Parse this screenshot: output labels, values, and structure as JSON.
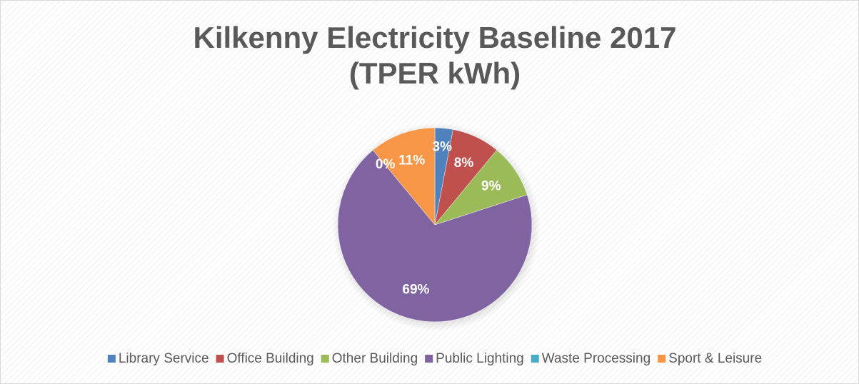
{
  "chart_data": {
    "type": "pie",
    "title": [
      "Kilkenny Electricity Baseline 2017",
      "(TPER kWh)"
    ],
    "categories": [
      "Library Service",
      "Office Building",
      "Other Building",
      "Public Lighting",
      "Waste Processing",
      "Sport & Leisure"
    ],
    "values": [
      3,
      8,
      9,
      69,
      0,
      11
    ],
    "value_labels": [
      "3%",
      "8%",
      "9%",
      "69%",
      "0%",
      "11%"
    ],
    "colors": [
      "#4f81bd",
      "#c0504d",
      "#9bbb59",
      "#8064a2",
      "#4bacc6",
      "#f79646"
    ],
    "legend": "bottom"
  }
}
